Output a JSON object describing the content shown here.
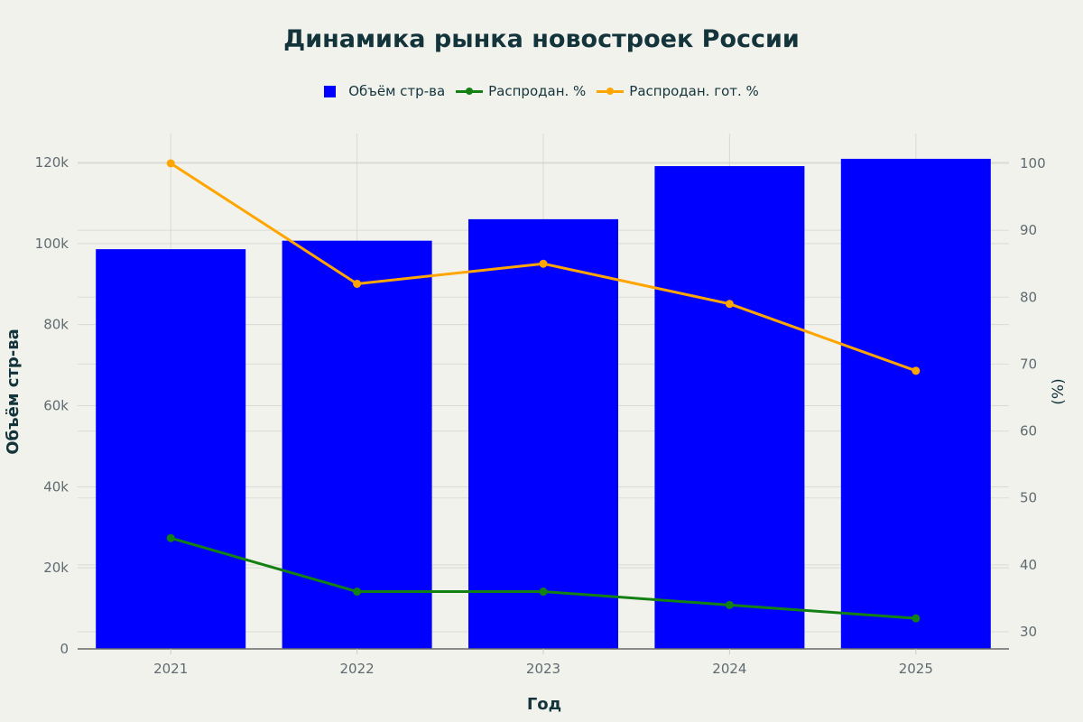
{
  "chart_data": {
    "type": "bar+line",
    "title": "Динамика рынка новостроек России",
    "xlabel": "Год",
    "ylabel": "Объём стр-ва",
    "y2label": "(%)",
    "categories": [
      "2021",
      "2022",
      "2023",
      "2024",
      "2025"
    ],
    "series": [
      {
        "name": "Объём стр-ва",
        "type": "bar",
        "axis": "left",
        "color": "#0000ff",
        "values": [
          98600,
          100700,
          106000,
          119100,
          120900
        ]
      },
      {
        "name": "Распродан. %",
        "type": "line",
        "axis": "right",
        "color": "#138013",
        "values": [
          44,
          36,
          36,
          34,
          32
        ]
      },
      {
        "name": "Распродан. гот. %",
        "type": "line",
        "axis": "right",
        "color": "#ffa500",
        "values": [
          100,
          82,
          85,
          79,
          69
        ]
      }
    ],
    "ylim": [
      0,
      120000
    ],
    "y_ticks": [
      "0",
      "20k",
      "40k",
      "60k",
      "80k",
      "100k",
      "120k"
    ],
    "y2lim": [
      30,
      100
    ],
    "y2_ticks": [
      "30",
      "40",
      "50",
      "60",
      "70",
      "80",
      "90",
      "100"
    ],
    "grid": true,
    "legend_position": "top"
  },
  "title": "Динамика рынка новостроек России",
  "legend": [
    {
      "label": "Объём стр-ва",
      "color": "#0000ff",
      "kind": "bar"
    },
    {
      "label": "Распродан. %",
      "color": "#138013",
      "kind": "line"
    },
    {
      "label": "Распродан. гот. %",
      "color": "#ffa500",
      "kind": "line"
    }
  ],
  "axes": {
    "x_title": "Год",
    "y_title": "Объём стр-ва",
    "y2_title": "(%)"
  }
}
